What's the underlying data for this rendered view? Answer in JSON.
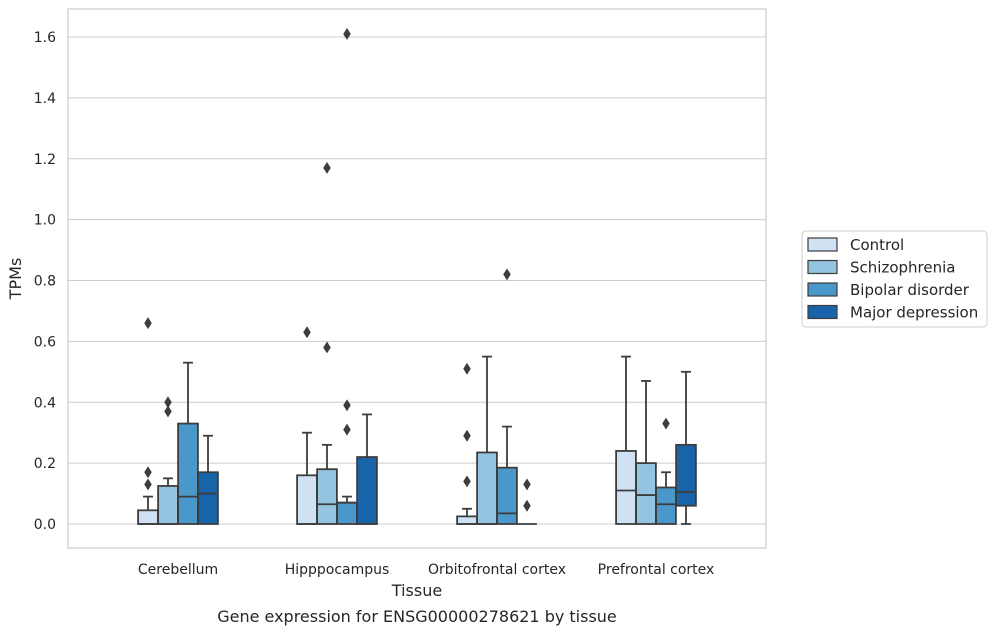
{
  "chart_data": {
    "type": "box",
    "caption": "Gene expression for ENSG00000278621 by tissue",
    "xlabel": "Tissue",
    "ylabel": "TPMs",
    "ylim": [
      -0.08,
      1.69
    ],
    "yticks": [
      0.0,
      0.2,
      0.4,
      0.6,
      0.8,
      1.0,
      1.2,
      1.4,
      1.6
    ],
    "ytick_labels": [
      "0.0",
      "0.2",
      "0.4",
      "0.6",
      "0.8",
      "1.0",
      "1.2",
      "1.4",
      "1.6"
    ],
    "grid": "horizontal",
    "legend_position": "right-middle",
    "categories": [
      "Cerebellum",
      "Hipppocampus",
      "Orbitofrontal cortex",
      "Prefrontal cortex"
    ],
    "series": [
      {
        "name": "Control",
        "color": "#cfe1f2",
        "boxes": [
          {
            "whislo": 0.0,
            "q1": 0.0,
            "med": 0.0,
            "q3": 0.045,
            "whishi": 0.09,
            "fliers": [
              0.13,
              0.17,
              0.66
            ]
          },
          {
            "whislo": 0.0,
            "q1": 0.0,
            "med": 0.0,
            "q3": 0.16,
            "whishi": 0.3,
            "fliers": [
              0.63
            ]
          },
          {
            "whislo": 0.0,
            "q1": 0.0,
            "med": 0.0,
            "q3": 0.025,
            "whishi": 0.05,
            "fliers": [
              0.14,
              0.29,
              0.51
            ]
          },
          {
            "whislo": 0.0,
            "q1": 0.0,
            "med": 0.11,
            "q3": 0.24,
            "whishi": 0.55,
            "fliers": []
          }
        ]
      },
      {
        "name": "Schizophrenia",
        "color": "#94c4df",
        "boxes": [
          {
            "whislo": 0.0,
            "q1": 0.0,
            "med": 0.0,
            "q3": 0.125,
            "whishi": 0.15,
            "fliers": [
              0.37,
              0.4
            ]
          },
          {
            "whislo": 0.0,
            "q1": 0.0,
            "med": 0.065,
            "q3": 0.18,
            "whishi": 0.26,
            "fliers": [
              0.58,
              1.17
            ]
          },
          {
            "whislo": 0.0,
            "q1": 0.0,
            "med": 0.0,
            "q3": 0.235,
            "whishi": 0.55,
            "fliers": []
          },
          {
            "whislo": 0.0,
            "q1": 0.0,
            "med": 0.095,
            "q3": 0.2,
            "whishi": 0.47,
            "fliers": []
          }
        ]
      },
      {
        "name": "Bipolar disorder",
        "color": "#4a98c9",
        "boxes": [
          {
            "whislo": 0.0,
            "q1": 0.0,
            "med": 0.09,
            "q3": 0.33,
            "whishi": 0.53,
            "fliers": []
          },
          {
            "whislo": 0.0,
            "q1": 0.0,
            "med": 0.07,
            "q3": 0.07,
            "whishi": 0.09,
            "fliers": [
              0.31,
              0.39,
              1.61
            ]
          },
          {
            "whislo": 0.0,
            "q1": 0.0,
            "med": 0.035,
            "q3": 0.185,
            "whishi": 0.32,
            "fliers": [
              0.82
            ]
          },
          {
            "whislo": 0.0,
            "q1": 0.0,
            "med": 0.065,
            "q3": 0.12,
            "whishi": 0.17,
            "fliers": [
              0.33
            ]
          }
        ]
      },
      {
        "name": "Major depression",
        "color": "#1764ab",
        "boxes": [
          {
            "whislo": 0.0,
            "q1": 0.0,
            "med": 0.1,
            "q3": 0.17,
            "whishi": 0.29,
            "fliers": []
          },
          {
            "whislo": 0.0,
            "q1": 0.0,
            "med": 0.0,
            "q3": 0.22,
            "whishi": 0.36,
            "fliers": []
          },
          {
            "whislo": 0.0,
            "q1": 0.0,
            "med": 0.0,
            "q3": 0.0,
            "whishi": 0.0,
            "fliers": [
              0.06,
              0.13
            ]
          },
          {
            "whislo": 0.0,
            "q1": 0.06,
            "med": 0.105,
            "q3": 0.26,
            "whishi": 0.5,
            "fliers": []
          }
        ]
      }
    ]
  }
}
